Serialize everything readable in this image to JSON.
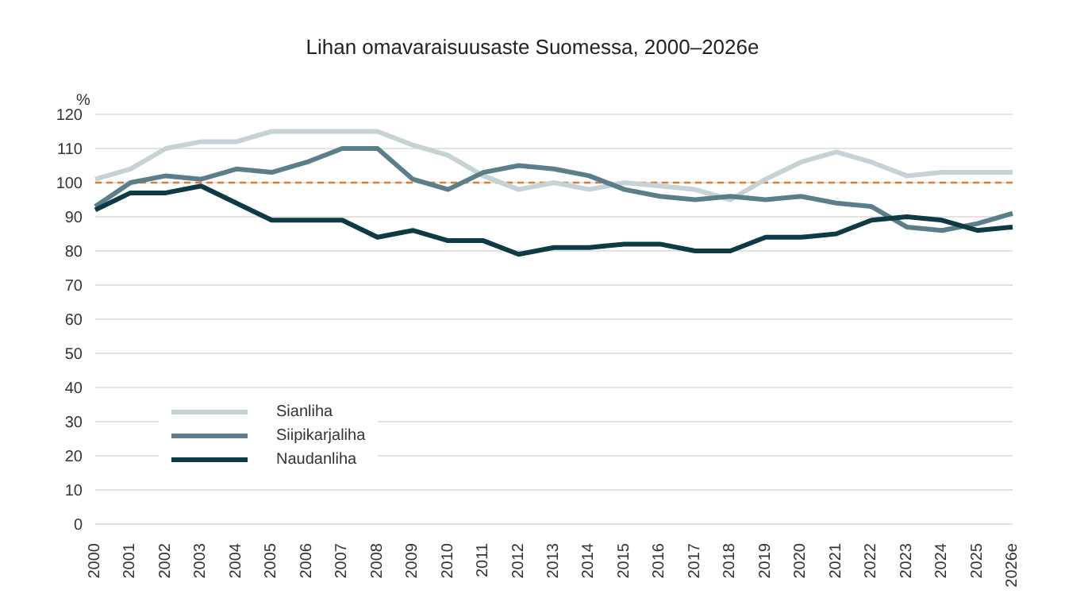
{
  "chart_data": {
    "type": "line",
    "title": "Lihan omavaraisuusaste Suomessa, 2000–2026e",
    "ylabel": "%",
    "categories": [
      "2000",
      "2001",
      "2002",
      "2003",
      "2004",
      "2005",
      "2006",
      "2007",
      "2008",
      "2009",
      "2010",
      "2011",
      "2012",
      "2013",
      "2014",
      "2015",
      "2016",
      "2017",
      "2018",
      "2019",
      "2020",
      "2021",
      "2022",
      "2023",
      "2024",
      "2025",
      "2026e"
    ],
    "series": [
      {
        "name": "Sianliha",
        "color": "#c5d3d6",
        "values": [
          101,
          104,
          110,
          112,
          112,
          115,
          115,
          115,
          115,
          111,
          108,
          102,
          98,
          100,
          98,
          100,
          99,
          98,
          95,
          101,
          106,
          109,
          106,
          102,
          103,
          103,
          103
        ]
      },
      {
        "name": "Siipikarjaliha",
        "color": "#5b7f8a",
        "values": [
          93,
          100,
          102,
          101,
          104,
          103,
          106,
          110,
          110,
          101,
          98,
          103,
          105,
          104,
          102,
          98,
          96,
          95,
          96,
          95,
          96,
          94,
          93,
          87,
          86,
          88,
          91
        ]
      },
      {
        "name": "Naudanliha",
        "color": "#0d3a44",
        "values": [
          92,
          97,
          97,
          99,
          94,
          89,
          89,
          89,
          84,
          86,
          83,
          83,
          79,
          81,
          81,
          82,
          82,
          80,
          80,
          84,
          84,
          85,
          89,
          90,
          89,
          86,
          87
        ]
      }
    ],
    "ylim": [
      0,
      120
    ],
    "yticks": [
      0,
      10,
      20,
      30,
      40,
      50,
      60,
      70,
      80,
      90,
      100,
      110,
      120
    ],
    "ref_lines": [
      {
        "axis": "y",
        "value": 100,
        "color": "#e07b2a",
        "line_style": "dashed"
      }
    ],
    "grid": "y",
    "legend": "left",
    "marker": "none",
    "line_style": "solid"
  }
}
